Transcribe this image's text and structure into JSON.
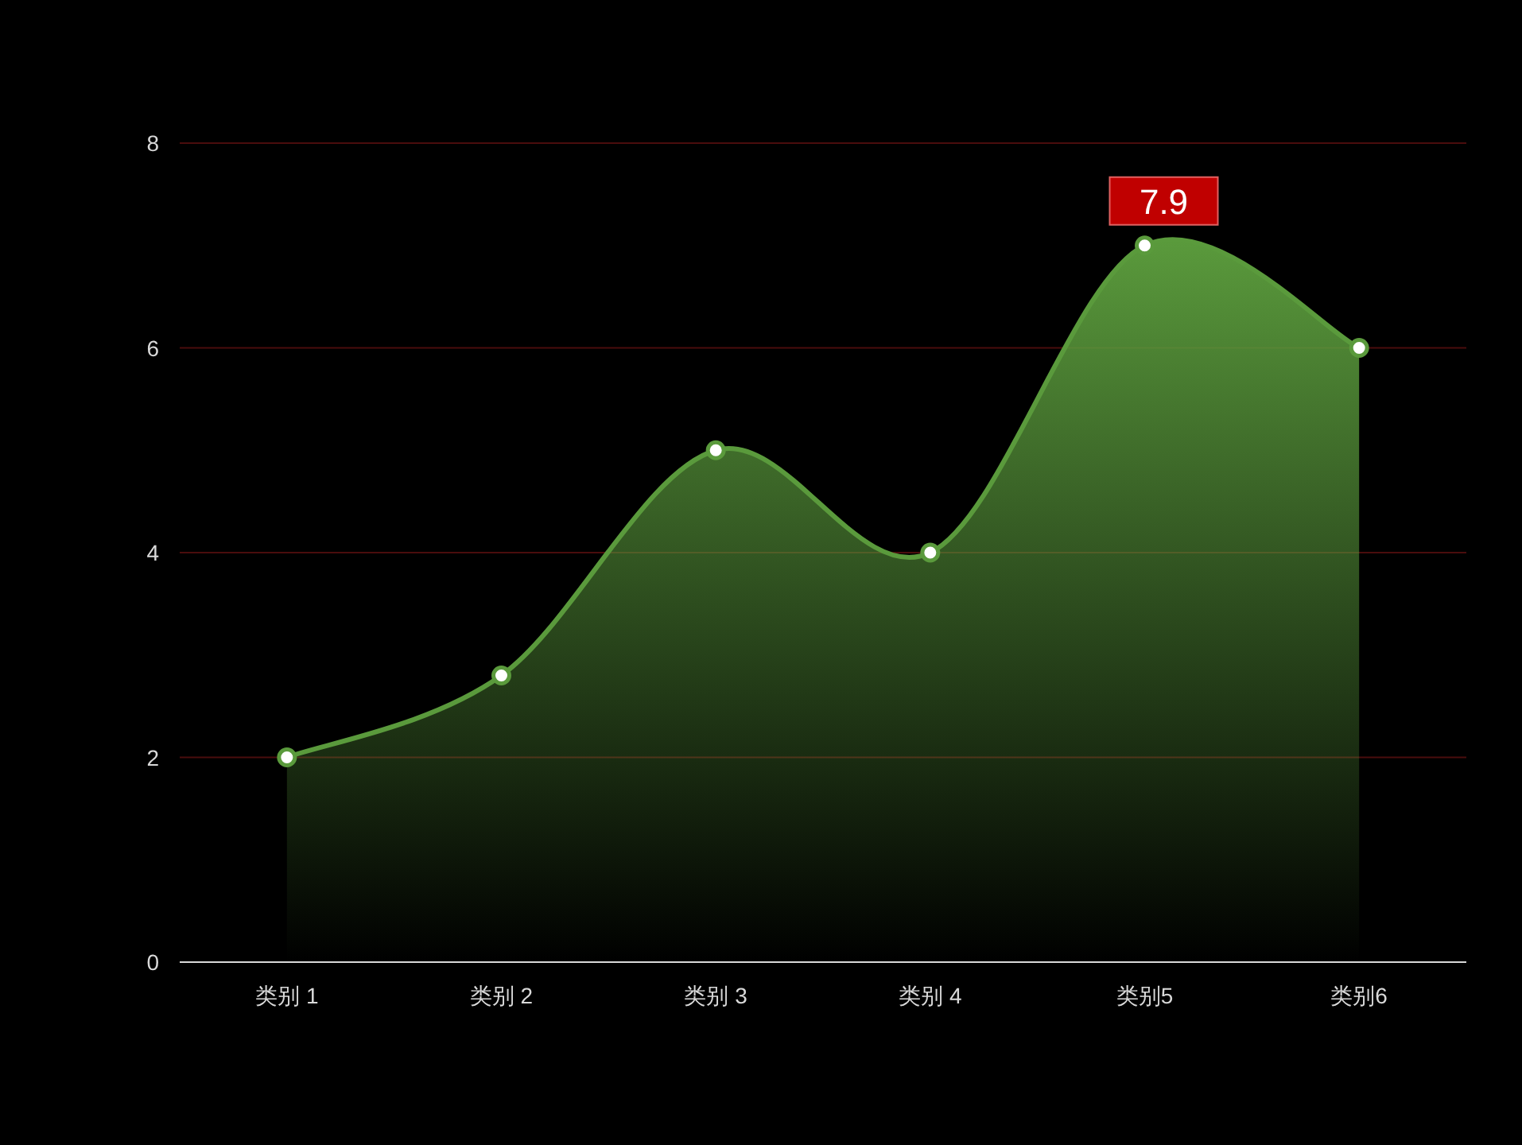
{
  "chart_data": {
    "type": "area",
    "categories": [
      "类别 1",
      "类别 2",
      "类别 3",
      "类别 4",
      "类别5",
      "类别6"
    ],
    "values": [
      2,
      2.8,
      5,
      4,
      7,
      6
    ],
    "color": "#5a9a3c",
    "ylim": [
      0,
      8
    ],
    "yticks": [
      0,
      2,
      4,
      6,
      8
    ],
    "grid": "y",
    "marker": "circle",
    "annotations": [
      {
        "text": "7.9",
        "x": "类别5",
        "y": 7
      }
    ]
  }
}
